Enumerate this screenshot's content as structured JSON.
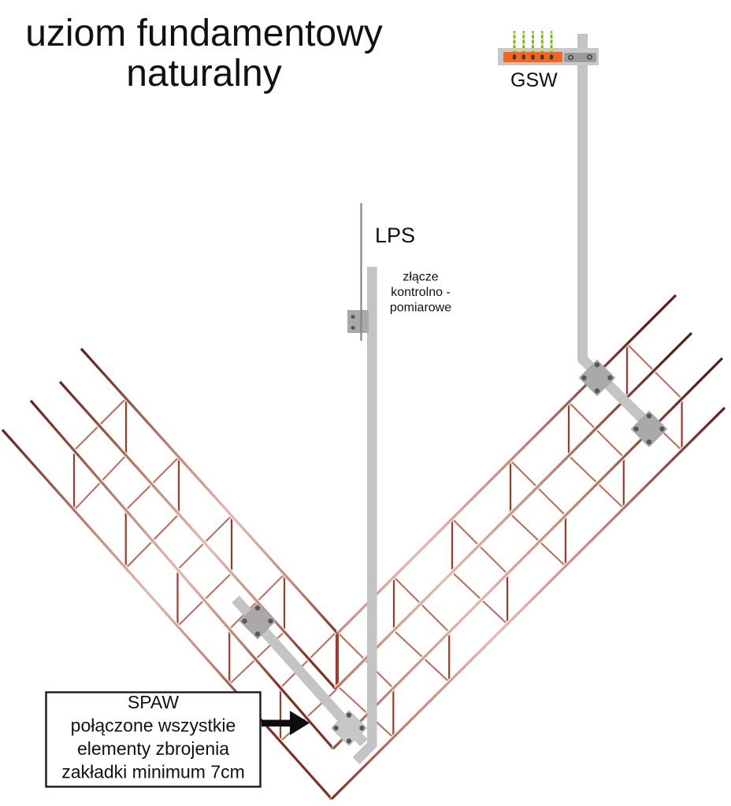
{
  "title": {
    "lines": [
      "uziom fundamentowy",
      "naturalny"
    ]
  },
  "gsw": {
    "label": "GSW"
  },
  "lps": {
    "label": "LPS"
  },
  "joint": {
    "lines": [
      "złącze",
      "kontrolno -",
      "pomiarowe"
    ]
  },
  "weld_note": {
    "lines": [
      "SPAW",
      "połączone wszystkie",
      "elementy zbrojenia",
      "zakładki minimum 7cm"
    ]
  },
  "colors": {
    "background": "#ffffff",
    "text": "#111111",
    "rebar_dark": "#5e1d12",
    "rebar_mid": "#c08270",
    "rebar_pale": "#e4b9aa",
    "rebar_corner": "#82301f",
    "stirrup_vertical": "#a03a2b",
    "stirrup_diagonal": "#bd6a55",
    "strap": "#c4c4c4",
    "plate": "#a9a9a9",
    "plate_light": "#c7c7c7",
    "plate_border": "#909090",
    "bolt": "#575757",
    "bolt_ring": "#4f4f4f",
    "bolt_center": "#a0a0a0",
    "busbar": "#c8c8c8",
    "busbar_plate": "#9b9b9b",
    "terminal_block": "#f4661e",
    "terminal_hole": "#3a3a3a",
    "wire_green": "#53b247",
    "wire_yellow": "#e8ea3a",
    "conductor": "#868686",
    "arrow": "#0d0d0d",
    "box_border": "#1a1a1a",
    "box_bg": "#ffffff"
  }
}
